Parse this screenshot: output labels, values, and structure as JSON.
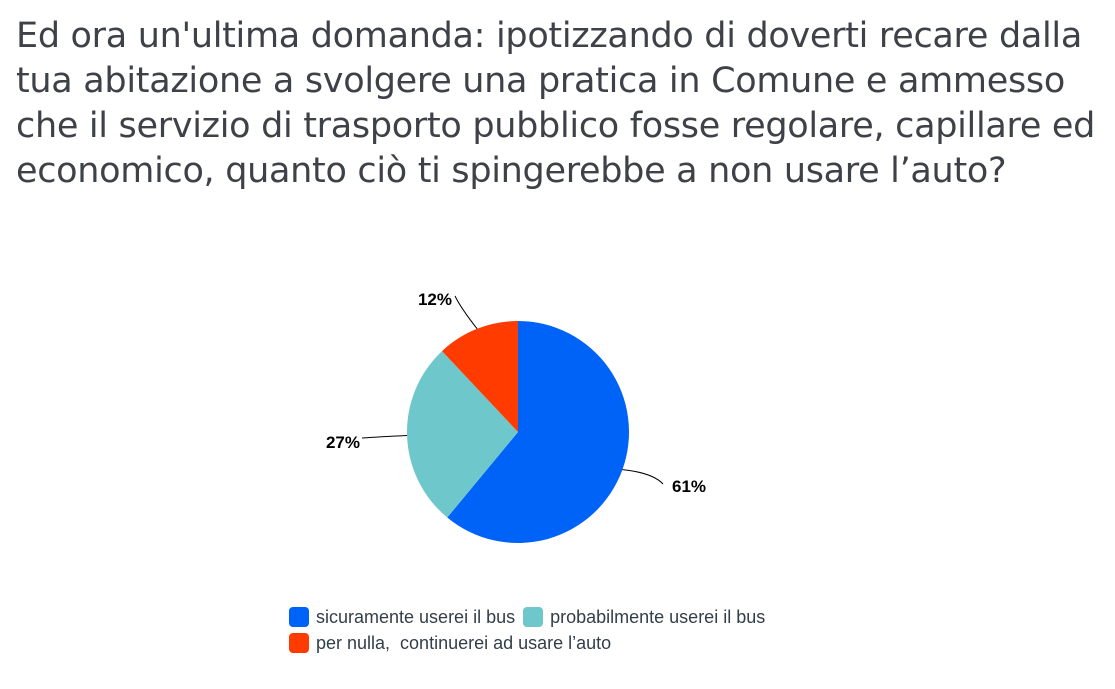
{
  "title": "Ed ora un'ultima domanda: ipotizzando di doverti recare dalla tua abitazione a svolgere una pratica in Comune e ammesso che il servizio di trasporto pubblico fosse regolare, capillare ed economico, quanto ciò ti spingerebbe a non usare l’auto?",
  "chart_data": {
    "type": "pie",
    "title": "Ed ora un'ultima domanda: ipotizzando di doverti recare dalla tua abitazione a svolgere una pratica in Comune e ammesso che il servizio di trasporto pubblico fosse regolare, capillare ed economico, quanto ciò ti spingerebbe a non usare l’auto?",
    "slices": [
      {
        "label": "sicuramente userei il bus",
        "value": 61,
        "display": "61%",
        "color": "#0063f7"
      },
      {
        "label": "probabilmente userei il bus",
        "value": 27,
        "display": "27%",
        "color": "#6ec8cb"
      },
      {
        "label": "per nulla,  continuerei ad usare l’auto",
        "value": 12,
        "display": "12%",
        "color": "#ff3b00"
      }
    ],
    "legend_position": "bottom"
  }
}
